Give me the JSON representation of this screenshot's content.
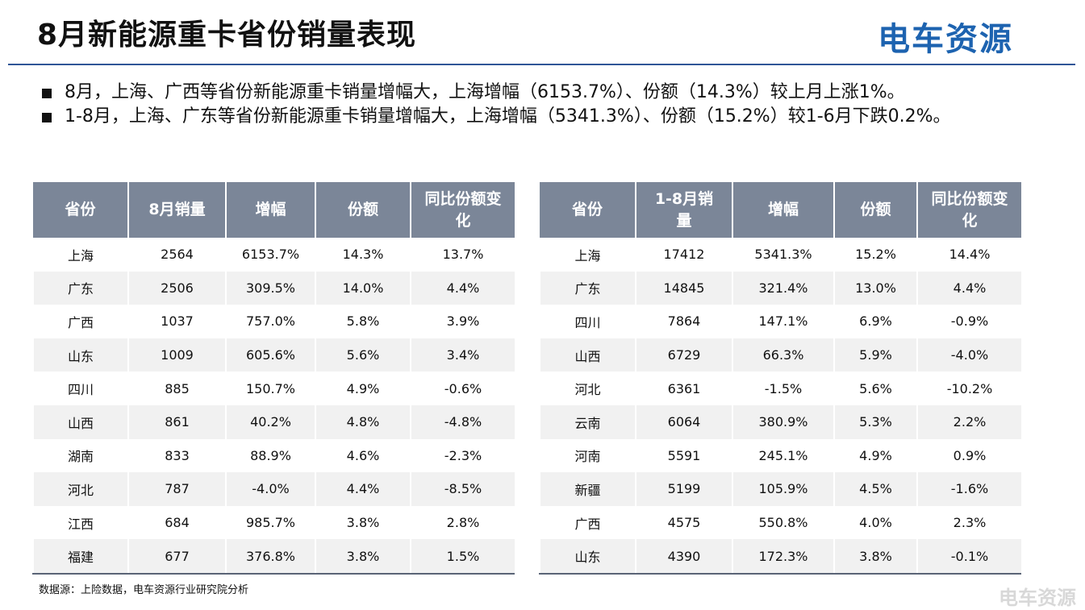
{
  "header": {
    "title": "8月新能源重卡省份销量表现",
    "logo": "电车资源"
  },
  "bullets": [
    "8月，上海、广西等省份新能源重卡销量增幅大，上海增幅（6153.7%）、份额（14.3%）较上月上涨1%。",
    "1-8月，上海、广东等省份新能源重卡销量增幅大，上海增幅（5341.3%）、份额（15.2%）较1-6月下跌0.2%。"
  ],
  "tables": [
    {
      "columns": [
        "省份",
        "8月销量",
        "增幅",
        "份额",
        "同比份额变化"
      ],
      "rows": [
        [
          "上海",
          "2564",
          "6153.7%",
          "14.3%",
          "13.7%"
        ],
        [
          "广东",
          "2506",
          "309.5%",
          "14.0%",
          "4.4%"
        ],
        [
          "广西",
          "1037",
          "757.0%",
          "5.8%",
          "3.9%"
        ],
        [
          "山东",
          "1009",
          "605.6%",
          "5.6%",
          "3.4%"
        ],
        [
          "四川",
          "885",
          "150.7%",
          "4.9%",
          "-0.6%"
        ],
        [
          "山西",
          "861",
          "40.2%",
          "4.8%",
          "-4.8%"
        ],
        [
          "湖南",
          "833",
          "88.9%",
          "4.6%",
          "-2.3%"
        ],
        [
          "河北",
          "787",
          "-4.0%",
          "4.4%",
          "-8.5%"
        ],
        [
          "江西",
          "684",
          "985.7%",
          "3.8%",
          "2.8%"
        ],
        [
          "福建",
          "677",
          "376.8%",
          "3.8%",
          "1.5%"
        ]
      ]
    },
    {
      "columns": [
        "省份",
        "1-8月销量",
        "增幅",
        "份额",
        "同比份额变化"
      ],
      "rows": [
        [
          "上海",
          "17412",
          "5341.3%",
          "15.2%",
          "14.4%"
        ],
        [
          "广东",
          "14845",
          "321.4%",
          "13.0%",
          "4.4%"
        ],
        [
          "四川",
          "7864",
          "147.1%",
          "6.9%",
          "-0.9%"
        ],
        [
          "山西",
          "6729",
          "66.3%",
          "5.9%",
          "-4.0%"
        ],
        [
          "河北",
          "6361",
          "-1.5%",
          "5.6%",
          "-10.2%"
        ],
        [
          "云南",
          "6064",
          "380.9%",
          "5.3%",
          "2.2%"
        ],
        [
          "河南",
          "5591",
          "245.1%",
          "4.9%",
          "0.9%"
        ],
        [
          "新疆",
          "5199",
          "105.9%",
          "4.5%",
          "-1.6%"
        ],
        [
          "广西",
          "4575",
          "550.8%",
          "4.0%",
          "2.3%"
        ],
        [
          "山东",
          "4390",
          "172.3%",
          "3.8%",
          "-0.1%"
        ]
      ]
    }
  ],
  "footer": {
    "source": "数据源：上险数据，电车资源行业研究院分析",
    "watermark": "电车资源"
  }
}
